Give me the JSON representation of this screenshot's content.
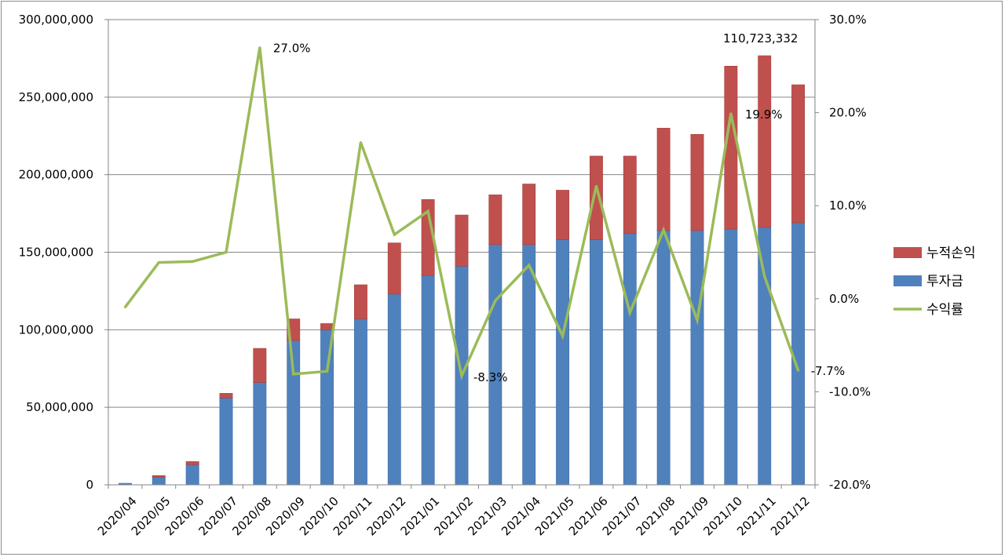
{
  "chart_data": {
    "type": "bar+line",
    "categories": [
      "2020/04",
      "2020/05",
      "2020/06",
      "2020/07",
      "2020/08",
      "2020/09",
      "2020/10",
      "2020/11",
      "2020/12",
      "2021/01",
      "2021/02",
      "2021/03",
      "2021/04",
      "2021/05",
      "2021/06",
      "2021/07",
      "2021/08",
      "2021/09",
      "2021/10",
      "2021/11",
      "2021/12"
    ],
    "series": [
      {
        "name": "투자금",
        "kind": "stacked-bar",
        "color": "#4f81bd",
        "values": [
          1000000,
          5000000,
          13000000,
          56000000,
          66000000,
          93000000,
          100000000,
          107000000,
          123000000,
          135000000,
          141000000,
          155000000,
          155000000,
          158000000,
          158000000,
          162000000,
          164000000,
          164000000,
          165000000,
          166000000,
          169000000
        ]
      },
      {
        "name": "누적손익",
        "kind": "stacked-bar",
        "color": "#c0504d",
        "values": [
          0,
          1000000,
          2000000,
          3000000,
          22000000,
          14000000,
          4000000,
          22000000,
          33000000,
          49000000,
          33000000,
          32000000,
          39000000,
          32000000,
          54000000,
          50000000,
          66000000,
          62000000,
          105000000,
          110723332,
          89000000
        ]
      },
      {
        "name": "수익률",
        "kind": "line",
        "axis": "right",
        "color": "#9bbb59",
        "values": [
          -0.9,
          3.9,
          4.0,
          5.0,
          27.0,
          -8.1,
          -7.8,
          16.8,
          6.9,
          9.4,
          -8.3,
          -0.2,
          3.6,
          -4.0,
          12.1,
          -1.5,
          7.4,
          -2.3,
          19.9,
          2.4,
          -7.7
        ]
      }
    ],
    "y_left": {
      "min": 0,
      "max": 300000000,
      "step": 50000000,
      "tick_labels": [
        "0",
        "50,000,000",
        "100,000,000",
        "150,000,000",
        "200,000,000",
        "250,000,000",
        "300,000,000"
      ]
    },
    "y_right": {
      "min": -20,
      "max": 30,
      "step": 10,
      "tick_labels": [
        "-20.0%",
        "-10.0%",
        "0.0%",
        "10.0%",
        "20.0%",
        "30.0%"
      ]
    },
    "annotations": [
      {
        "text": "27.0%",
        "index": 4,
        "series": "수익률"
      },
      {
        "text": "-8.3%",
        "index": 10,
        "series": "수익률"
      },
      {
        "text": "19.9%",
        "index": 18,
        "series": "수익률"
      },
      {
        "text": "-7.7%",
        "index": 20,
        "series": "수익률"
      },
      {
        "text": "110,723,332",
        "index": 19,
        "series": "누적손익"
      }
    ],
    "legend": {
      "position": "right",
      "items": [
        "누적손익",
        "투자금",
        "수익률"
      ]
    },
    "grid": true
  }
}
